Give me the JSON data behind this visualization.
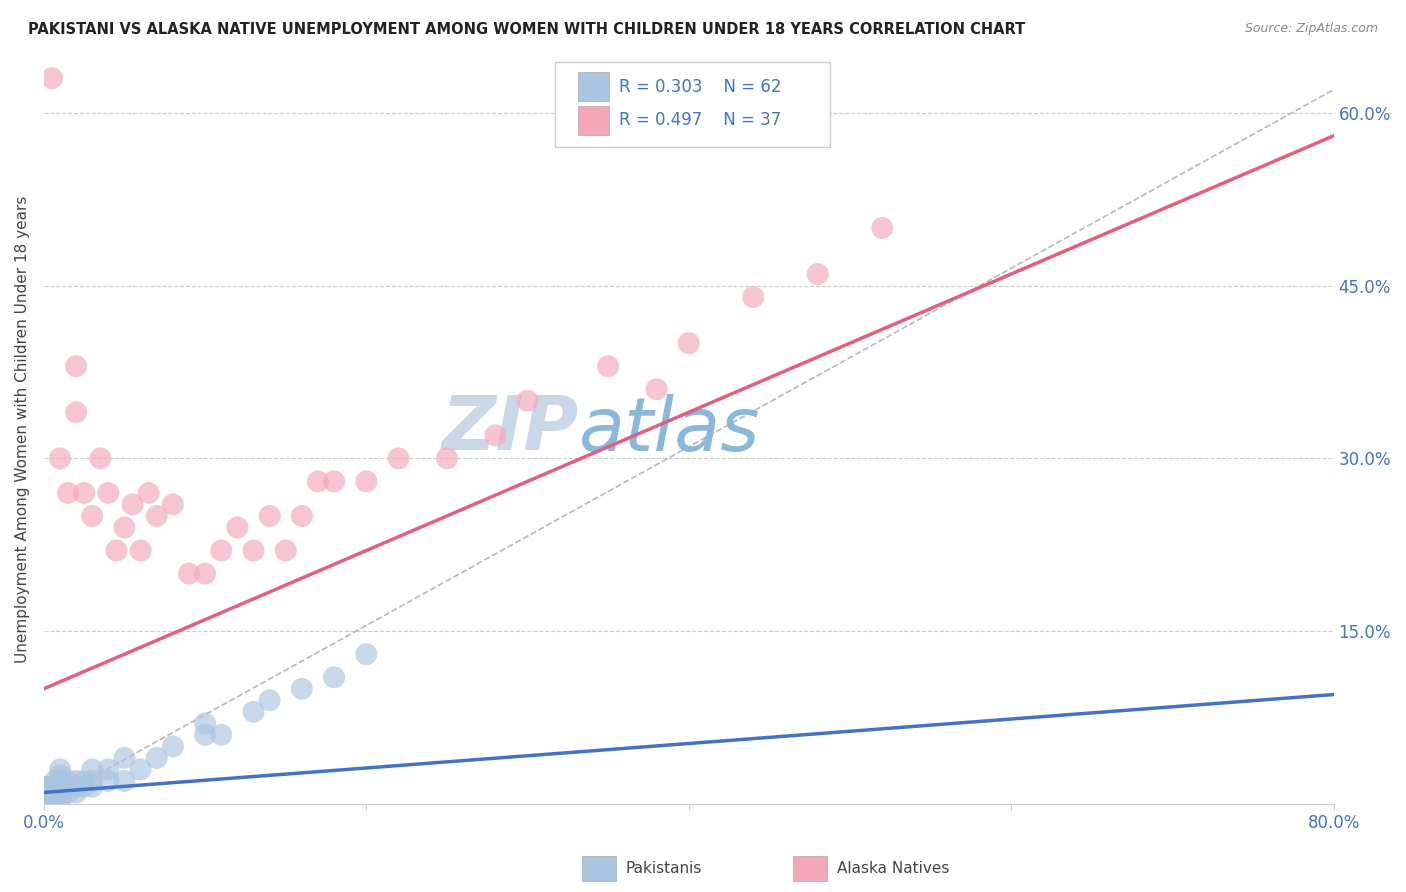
{
  "title": "PAKISTANI VS ALASKA NATIVE UNEMPLOYMENT AMONG WOMEN WITH CHILDREN UNDER 18 YEARS CORRELATION CHART",
  "source": "Source: ZipAtlas.com",
  "ylabel": "Unemployment Among Women with Children Under 18 years",
  "xlim": [
    0.0,
    0.8
  ],
  "ylim": [
    0.0,
    0.65
  ],
  "r_pakistani": 0.303,
  "n_pakistani": 62,
  "r_alaska": 0.497,
  "n_alaska": 37,
  "pakistani_color": "#a8c4e0",
  "alaska_color": "#f4a7b9",
  "pakistani_line_color": "#4472c4",
  "alaska_line_color": "#e06080",
  "text_color": "#4472c4",
  "watermark_color_zip": "#c8d8e8",
  "watermark_color_atlas": "#8ab8d8",
  "pakistani_scatter_x": [
    0.0,
    0.0,
    0.0,
    0.0,
    0.0,
    0.0,
    0.0,
    0.0,
    0.0,
    0.0,
    0.0,
    0.0,
    0.0,
    0.0,
    0.0,
    0.0,
    0.0,
    0.0,
    0.0,
    0.0,
    0.005,
    0.005,
    0.005,
    0.005,
    0.005,
    0.007,
    0.007,
    0.007,
    0.007,
    0.01,
    0.01,
    0.01,
    0.01,
    0.01,
    0.01,
    0.01,
    0.015,
    0.015,
    0.015,
    0.02,
    0.02,
    0.02,
    0.025,
    0.025,
    0.03,
    0.03,
    0.03,
    0.04,
    0.04,
    0.05,
    0.05,
    0.06,
    0.07,
    0.08,
    0.1,
    0.1,
    0.11,
    0.13,
    0.14,
    0.16,
    0.18,
    0.2
  ],
  "pakistani_scatter_y": [
    0.0,
    0.0,
    0.0,
    0.0,
    0.0,
    0.0,
    0.0,
    0.0,
    0.005,
    0.005,
    0.007,
    0.007,
    0.01,
    0.01,
    0.01,
    0.01,
    0.012,
    0.012,
    0.015,
    0.015,
    0.0,
    0.005,
    0.01,
    0.01,
    0.015,
    0.005,
    0.01,
    0.015,
    0.02,
    0.0,
    0.005,
    0.01,
    0.015,
    0.02,
    0.025,
    0.03,
    0.01,
    0.015,
    0.02,
    0.01,
    0.015,
    0.02,
    0.015,
    0.02,
    0.015,
    0.02,
    0.03,
    0.02,
    0.03,
    0.02,
    0.04,
    0.03,
    0.04,
    0.05,
    0.06,
    0.07,
    0.06,
    0.08,
    0.09,
    0.1,
    0.11,
    0.13
  ],
  "alaska_scatter_x": [
    0.005,
    0.01,
    0.015,
    0.02,
    0.02,
    0.025,
    0.03,
    0.035,
    0.04,
    0.045,
    0.05,
    0.055,
    0.06,
    0.065,
    0.07,
    0.08,
    0.09,
    0.1,
    0.11,
    0.12,
    0.13,
    0.14,
    0.15,
    0.16,
    0.17,
    0.18,
    0.2,
    0.22,
    0.25,
    0.28,
    0.3,
    0.35,
    0.38,
    0.4,
    0.44,
    0.48,
    0.52
  ],
  "alaska_scatter_y": [
    0.63,
    0.3,
    0.27,
    0.38,
    0.34,
    0.27,
    0.25,
    0.3,
    0.27,
    0.22,
    0.24,
    0.26,
    0.22,
    0.27,
    0.25,
    0.26,
    0.2,
    0.2,
    0.22,
    0.24,
    0.22,
    0.25,
    0.22,
    0.25,
    0.28,
    0.28,
    0.28,
    0.3,
    0.3,
    0.32,
    0.35,
    0.38,
    0.36,
    0.4,
    0.44,
    0.46,
    0.5
  ],
  "pak_line_x": [
    0.0,
    0.8
  ],
  "pak_line_y": [
    0.01,
    0.095
  ],
  "alaska_line_x": [
    0.0,
    0.8
  ],
  "alaska_line_y": [
    0.1,
    0.58
  ],
  "diag_line_x": [
    0.0,
    0.8
  ],
  "diag_line_y": [
    0.0,
    0.62
  ]
}
